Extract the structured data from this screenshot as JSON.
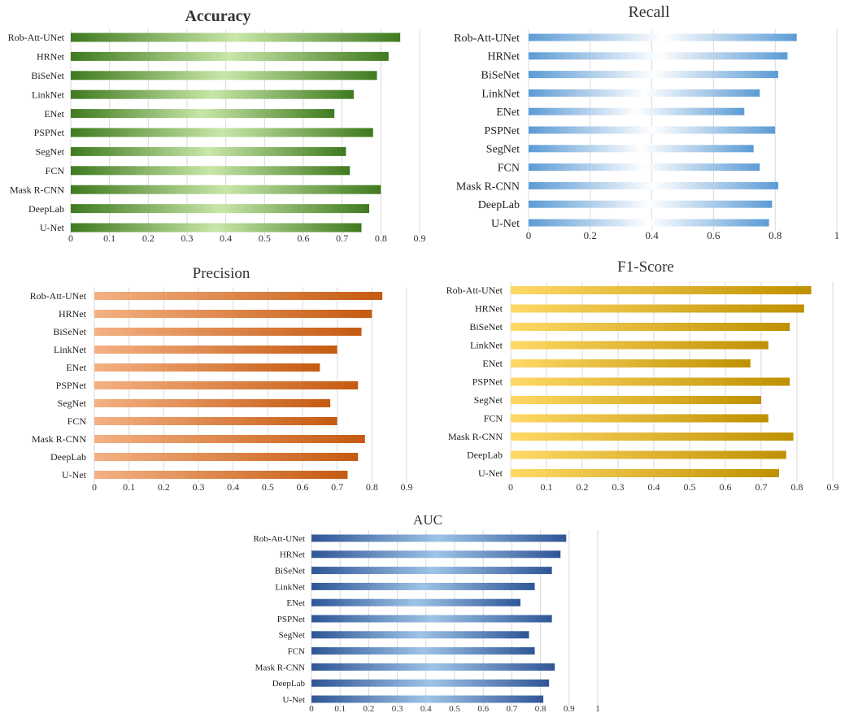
{
  "chart_data": [
    {
      "type": "bar",
      "orientation": "horizontal",
      "title": "Accuracy",
      "title_bold": true,
      "categories": [
        "Rob-Att-UNet",
        "HRNet",
        "BiSeNet",
        "LinkNet",
        "ENet",
        "PSPNet",
        "SegNet",
        "FCN",
        "Mask R-CNN",
        "DeepLab",
        "U-Net"
      ],
      "values": [
        0.85,
        0.82,
        0.79,
        0.73,
        0.68,
        0.78,
        0.71,
        0.72,
        0.8,
        0.77,
        0.75
      ],
      "xlim": [
        0,
        0.9
      ],
      "xticks": [
        "0",
        "0.1",
        "0.2",
        "0.3",
        "0.4",
        "0.5",
        "0.6",
        "0.7",
        "0.8",
        "0.9"
      ],
      "grid": true,
      "colors": {
        "dark": "#3f7a1f",
        "light": "#c8e6a8"
      }
    },
    {
      "type": "bar",
      "orientation": "horizontal",
      "title": "Recall",
      "title_bold": false,
      "categories": [
        "Rob-Att-UNet",
        "HRNet",
        "BiSeNet",
        "LinkNet",
        "ENet",
        "PSPNet",
        "SegNet",
        "FCN",
        "Mask R-CNN",
        "DeepLab",
        "U-Net"
      ],
      "values": [
        0.87,
        0.84,
        0.81,
        0.75,
        0.7,
        0.8,
        0.73,
        0.75,
        0.81,
        0.79,
        0.78
      ],
      "xlim": [
        0,
        1
      ],
      "xticks": [
        "0",
        "0.2",
        "0.4",
        "0.6",
        "0.8",
        "1"
      ],
      "grid": true,
      "colors": {
        "dark": "#5b9bd5",
        "light": "#ffffff"
      }
    },
    {
      "type": "bar",
      "orientation": "horizontal",
      "title": "Precision",
      "title_bold": false,
      "categories": [
        "Rob-Att-UNet",
        "HRNet",
        "BiSeNet",
        "LinkNet",
        "ENet",
        "PSPNet",
        "SegNet",
        "FCN",
        "Mask R-CNN",
        "DeepLab",
        "U-Net"
      ],
      "values": [
        0.83,
        0.8,
        0.77,
        0.7,
        0.65,
        0.76,
        0.68,
        0.7,
        0.78,
        0.76,
        0.73
      ],
      "xlim": [
        0,
        0.9
      ],
      "xticks": [
        "0",
        "0.1",
        "0.2",
        "0.3",
        "0.4",
        "0.5",
        "0.6",
        "0.7",
        "0.8",
        "0.9"
      ],
      "grid": true,
      "colors": {
        "dark": "#c55a11",
        "light": "#f4b183"
      }
    },
    {
      "type": "bar",
      "orientation": "horizontal",
      "title": "F1-Score",
      "title_bold": false,
      "categories": [
        "Rob-Att-UNet",
        "HRNet",
        "BiSeNet",
        "LinkNet",
        "ENet",
        "PSPNet",
        "SegNet",
        "FCN",
        "Mask R-CNN",
        "DeepLab",
        "U-Net"
      ],
      "values": [
        0.84,
        0.82,
        0.78,
        0.72,
        0.67,
        0.78,
        0.7,
        0.72,
        0.79,
        0.77,
        0.75
      ],
      "xlim": [
        0,
        0.9
      ],
      "xticks": [
        "0",
        "0.1",
        "0.2",
        "0.3",
        "0.4",
        "0.5",
        "0.6",
        "0.7",
        "0.8",
        "0.9"
      ],
      "grid": true,
      "colors": {
        "dark": "#bf9000",
        "light": "#ffd966"
      }
    },
    {
      "type": "bar",
      "orientation": "horizontal",
      "title": "AUC",
      "title_bold": false,
      "categories": [
        "Rob-Att-UNet",
        "HRNet",
        "BiSeNet",
        "LinkNet",
        "ENet",
        "PSPNet",
        "SegNet",
        "FCN",
        "Mask R-CNN",
        "DeepLab",
        "U-Net"
      ],
      "values": [
        0.89,
        0.87,
        0.84,
        0.78,
        0.73,
        0.84,
        0.76,
        0.78,
        0.85,
        0.83,
        0.81
      ],
      "xlim": [
        0,
        1
      ],
      "xticks": [
        "0",
        "0.1",
        "0.2",
        "0.3",
        "0.4",
        "0.5",
        "0.6",
        "0.7",
        "0.8",
        "0.9",
        "1"
      ],
      "grid": true,
      "colors": {
        "dark": "#2f5597",
        "light": "#9dc3e6"
      }
    }
  ]
}
